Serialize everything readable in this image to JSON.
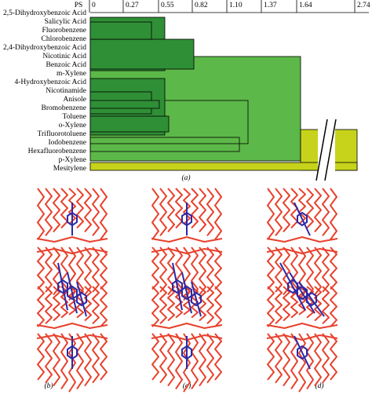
{
  "dendrogram": {
    "axis_label": "PS",
    "ticks": [
      "0",
      "0.27",
      "0.55",
      "0.82",
      "1.10",
      "1.37",
      "1.64",
      "2.74"
    ],
    "leaves": [
      "2,5-Dihydroxybenzoic Acid",
      "Salicylic Acid",
      "Fluorobenzene",
      "Chlorobenzene",
      "2,4-Dihydroxybenzoic Acid",
      "Nicotinic Acid",
      "Benzoic Acid",
      "m-Xylene",
      "4-Hydroxybenzoic Acid",
      "Nicotinamide",
      "Anisole",
      "Bromobenzene",
      "Toluene",
      "o-Xylene",
      "Trifluorotoluene",
      "Iodobenzene",
      "Hexafluorobenzene",
      "p-Xylene",
      "Mesitylene"
    ],
    "caption": "(a)"
  },
  "panels": [
    "(b)",
    "(c)",
    "(d)"
  ]
}
